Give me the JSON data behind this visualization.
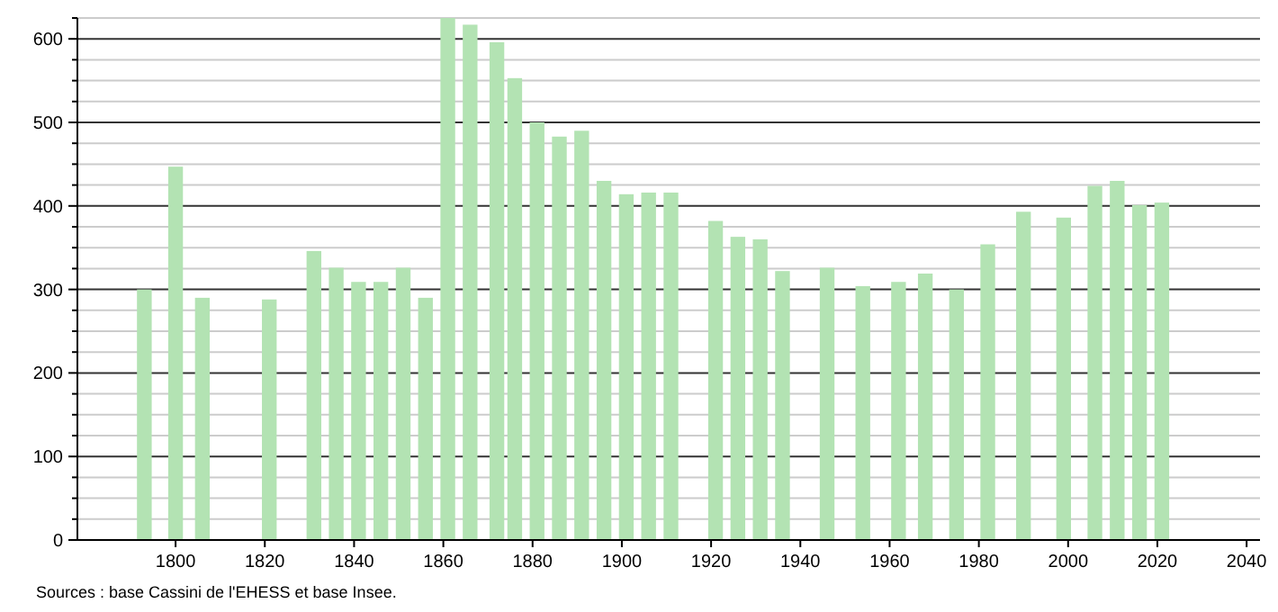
{
  "chart_data": {
    "type": "bar",
    "x": [
      1793,
      1800,
      1806,
      1821,
      1831,
      1836,
      1841,
      1846,
      1851,
      1856,
      1861,
      1866,
      1872,
      1876,
      1881,
      1886,
      1891,
      1896,
      1901,
      1906,
      1911,
      1921,
      1926,
      1931,
      1936,
      1946,
      1954,
      1962,
      1968,
      1975,
      1982,
      1990,
      1999,
      2006,
      2011,
      2016,
      2021
    ],
    "values": [
      300,
      447,
      290,
      288,
      346,
      326,
      309,
      309,
      326,
      290,
      625,
      617,
      596,
      553,
      500,
      483,
      490,
      430,
      414,
      416,
      416,
      382,
      363,
      360,
      322,
      326,
      304,
      309,
      319,
      300,
      354,
      393,
      386,
      424,
      430,
      401,
      404
    ],
    "color": "#b3e3b3",
    "xlim": [
      1778,
      2043
    ],
    "xticks": [
      1800,
      1820,
      1840,
      1860,
      1880,
      1900,
      1920,
      1940,
      1960,
      1980,
      2000,
      2020,
      2040
    ],
    "ylim": [
      0,
      625
    ],
    "yticks": [
      0,
      {
        "value": 25,
        "label": null
      },
      {
        "value": 50,
        "label": null
      },
      {
        "value": 75,
        "label": null
      },
      100,
      {
        "value": 125,
        "label": null
      },
      {
        "value": 150,
        "label": null
      },
      {
        "value": 175,
        "label": null
      },
      200,
      {
        "value": 225,
        "label": null
      },
      {
        "value": 250,
        "label": null
      },
      {
        "value": 275,
        "label": null
      },
      300,
      {
        "value": 325,
        "label": null
      },
      {
        "value": 350,
        "label": null
      },
      {
        "value": 375,
        "label": null
      },
      400,
      {
        "value": 425,
        "label": null
      },
      {
        "value": 450,
        "label": null
      },
      {
        "value": 475,
        "label": null
      },
      500,
      {
        "value": 525,
        "label": null
      },
      {
        "value": 550,
        "label": null
      },
      {
        "value": 575,
        "label": null
      },
      600,
      {
        "value": 625,
        "label": null
      }
    ],
    "grid": "y",
    "annotations": [
      "Sources : base Cassini de l'EHESS et base Insee."
    ]
  }
}
